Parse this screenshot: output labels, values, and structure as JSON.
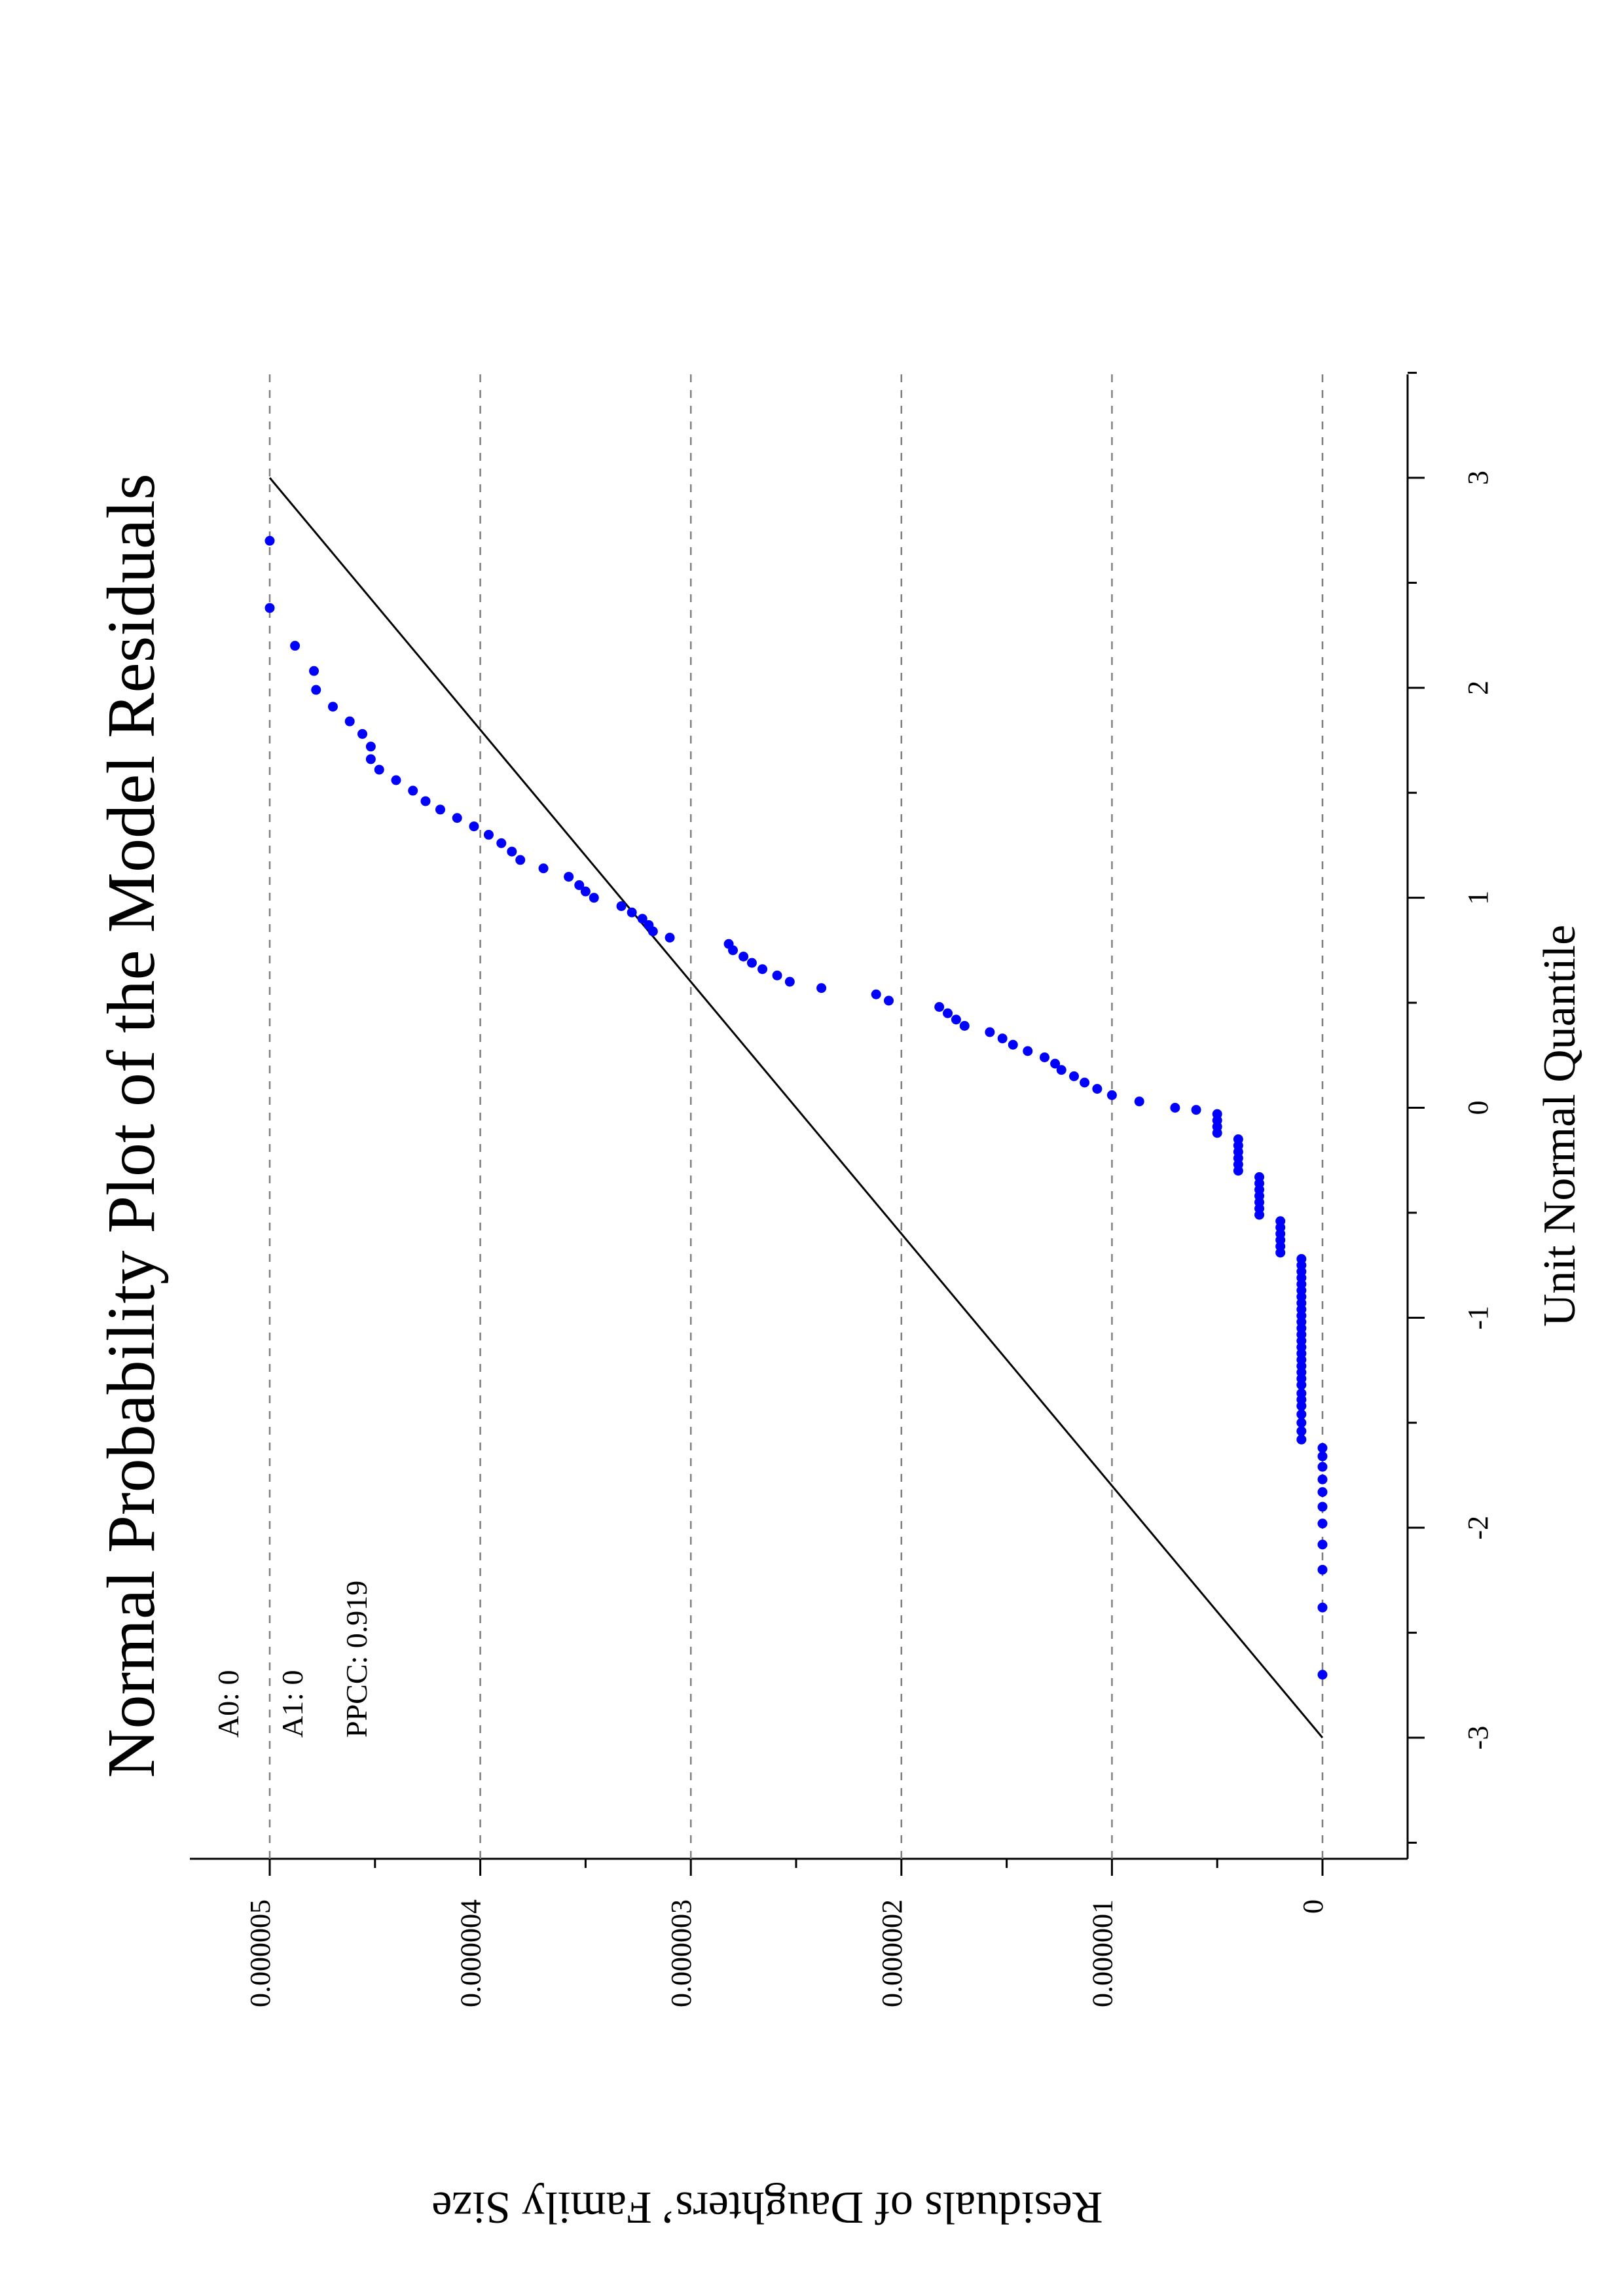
{
  "chart_data": {
    "type": "scatter",
    "orientation": "rotated-90-ccw",
    "title": "Normal Probability Plot of the Model Residuals",
    "xlabel": "Unit Normal Quantile",
    "ylabel": "Residuals of Daughters’ Family Size",
    "xlim": [
      -3.5,
      3.5
    ],
    "ylim": [
      -3.5e-07,
      5.3e-06
    ],
    "x_ticks": [
      -3,
      -2,
      -1,
      0,
      1,
      2,
      3
    ],
    "x_tick_labels": [
      "-3",
      "-2",
      "-1",
      "0",
      "1",
      "2",
      "3"
    ],
    "y_ticks": [
      0,
      1e-06,
      2e-06,
      3e-06,
      4e-06,
      5e-06
    ],
    "y_tick_labels": [
      "0",
      "0.000001",
      "0.000002",
      "0.000003",
      "0.000004",
      "0.000005"
    ],
    "grid": {
      "y_major": true,
      "style": "dashed"
    },
    "annotations": [
      "A0: 0",
      "A1: 0",
      "PPCC: 0.919"
    ],
    "reference_line": {
      "x": [
        -3,
        3
      ],
      "y": [
        0,
        5e-06
      ]
    },
    "marker_color": "#0000ff",
    "line_color": "#000000",
    "series": [
      {
        "points": [
          [
            -2.7,
            0.0
          ],
          [
            -2.38,
            0.0
          ],
          [
            -2.2,
            0.0
          ],
          [
            -2.08,
            0.0
          ],
          [
            -1.98,
            0.0
          ],
          [
            -1.9,
            0.0
          ],
          [
            -1.83,
            0.0
          ],
          [
            -1.77,
            0.0
          ],
          [
            -1.71,
            0.0
          ],
          [
            -1.66,
            0.0
          ],
          [
            -1.62,
            0.0
          ],
          [
            -1.58,
            1e-07
          ],
          [
            -1.54,
            1e-07
          ],
          [
            -1.5,
            1e-07
          ],
          [
            -1.46,
            1e-07
          ],
          [
            -1.42,
            1e-07
          ],
          [
            -1.39,
            1e-07
          ],
          [
            -1.36,
            1e-07
          ],
          [
            -1.32,
            1e-07
          ],
          [
            -1.29,
            1e-07
          ],
          [
            -1.26,
            1e-07
          ],
          [
            -1.23,
            1e-07
          ],
          [
            -1.2,
            1e-07
          ],
          [
            -1.17,
            1e-07
          ],
          [
            -1.14,
            1e-07
          ],
          [
            -1.11,
            1e-07
          ],
          [
            -1.08,
            1e-07
          ],
          [
            -1.05,
            1e-07
          ],
          [
            -1.02,
            1e-07
          ],
          [
            -0.99,
            1e-07
          ],
          [
            -0.96,
            1e-07
          ],
          [
            -0.93,
            1e-07
          ],
          [
            -0.9,
            1e-07
          ],
          [
            -0.87,
            1e-07
          ],
          [
            -0.84,
            1e-07
          ],
          [
            -0.81,
            1e-07
          ],
          [
            -0.78,
            1e-07
          ],
          [
            -0.75,
            1e-07
          ],
          [
            -0.72,
            1e-07
          ],
          [
            -0.69,
            2e-07
          ],
          [
            -0.66,
            2e-07
          ],
          [
            -0.63,
            2e-07
          ],
          [
            -0.6,
            2e-07
          ],
          [
            -0.57,
            2e-07
          ],
          [
            -0.54,
            2e-07
          ],
          [
            -0.51,
            3e-07
          ],
          [
            -0.48,
            3e-07
          ],
          [
            -0.45,
            3e-07
          ],
          [
            -0.42,
            3e-07
          ],
          [
            -0.39,
            3e-07
          ],
          [
            -0.36,
            3e-07
          ],
          [
            -0.33,
            3e-07
          ],
          [
            -0.3,
            4e-07
          ],
          [
            -0.27,
            4e-07
          ],
          [
            -0.24,
            4e-07
          ],
          [
            -0.21,
            4e-07
          ],
          [
            -0.18,
            4e-07
          ],
          [
            -0.15,
            4e-07
          ],
          [
            -0.12,
            5e-07
          ],
          [
            -0.09,
            5e-07
          ],
          [
            -0.06,
            5e-07
          ],
          [
            -0.03,
            5e-07
          ],
          [
            -0.01,
            6e-07
          ],
          [
            0.0,
            7e-07
          ],
          [
            0.03,
            8.7e-07
          ],
          [
            0.06,
            1e-06
          ],
          [
            0.09,
            1.07e-06
          ],
          [
            0.12,
            1.13e-06
          ],
          [
            0.15,
            1.18e-06
          ],
          [
            0.18,
            1.24e-06
          ],
          [
            0.21,
            1.27e-06
          ],
          [
            0.24,
            1.32e-06
          ],
          [
            0.27,
            1.4e-06
          ],
          [
            0.3,
            1.47e-06
          ],
          [
            0.33,
            1.52e-06
          ],
          [
            0.36,
            1.58e-06
          ],
          [
            0.39,
            1.7e-06
          ],
          [
            0.42,
            1.74e-06
          ],
          [
            0.45,
            1.78e-06
          ],
          [
            0.48,
            1.82e-06
          ],
          [
            0.51,
            2.06e-06
          ],
          [
            0.54,
            2.12e-06
          ],
          [
            0.57,
            2.38e-06
          ],
          [
            0.6,
            2.53e-06
          ],
          [
            0.63,
            2.59e-06
          ],
          [
            0.66,
            2.66e-06
          ],
          [
            0.69,
            2.71e-06
          ],
          [
            0.72,
            2.75e-06
          ],
          [
            0.75,
            2.8e-06
          ],
          [
            0.78,
            2.82e-06
          ],
          [
            0.81,
            3.1e-06
          ],
          [
            0.84,
            3.18e-06
          ],
          [
            0.87,
            3.2e-06
          ],
          [
            0.9,
            3.23e-06
          ],
          [
            0.93,
            3.28e-06
          ],
          [
            0.96,
            3.33e-06
          ],
          [
            1.0,
            3.46e-06
          ],
          [
            1.03,
            3.5e-06
          ],
          [
            1.06,
            3.53e-06
          ],
          [
            1.1,
            3.58e-06
          ],
          [
            1.14,
            3.7e-06
          ],
          [
            1.18,
            3.81e-06
          ],
          [
            1.22,
            3.85e-06
          ],
          [
            1.26,
            3.9e-06
          ],
          [
            1.3,
            3.96e-06
          ],
          [
            1.34,
            4.03e-06
          ],
          [
            1.38,
            4.11e-06
          ],
          [
            1.42,
            4.19e-06
          ],
          [
            1.46,
            4.26e-06
          ],
          [
            1.51,
            4.32e-06
          ],
          [
            1.56,
            4.4e-06
          ],
          [
            1.61,
            4.48e-06
          ],
          [
            1.66,
            4.52e-06
          ],
          [
            1.72,
            4.52e-06
          ],
          [
            1.78,
            4.56e-06
          ],
          [
            1.84,
            4.62e-06
          ],
          [
            1.91,
            4.7e-06
          ],
          [
            1.99,
            4.78e-06
          ],
          [
            2.08,
            4.79e-06
          ],
          [
            2.2,
            4.88e-06
          ],
          [
            2.38,
            5e-06
          ],
          [
            2.7,
            5e-06
          ]
        ]
      }
    ]
  }
}
